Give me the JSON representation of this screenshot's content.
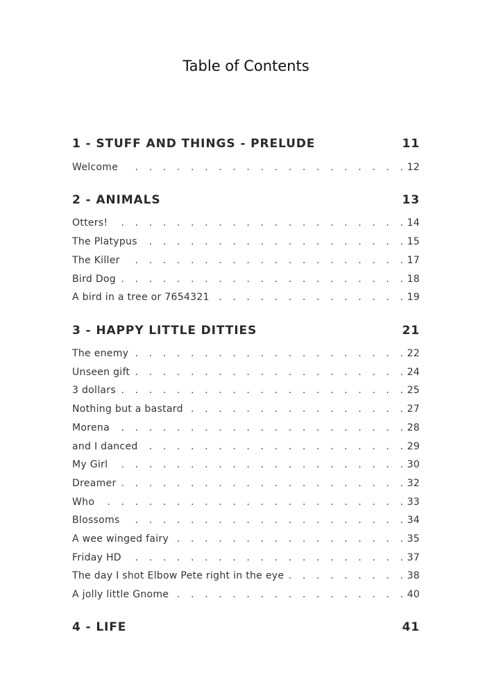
{
  "title": "Table of Contents",
  "chapters": [
    {
      "heading": "1 - STUFF AND THINGS - PRELUDE",
      "page": "11",
      "entries": [
        {
          "title": "Welcome",
          "page": "12"
        }
      ]
    },
    {
      "heading": "2 - ANIMALS",
      "page": "13",
      "entries": [
        {
          "title": "Otters!",
          "page": "14"
        },
        {
          "title": "The Platypus",
          "page": "15"
        },
        {
          "title": "The Killer",
          "page": "17"
        },
        {
          "title": "Bird Dog",
          "page": "18"
        },
        {
          "title": "A bird in a tree or 7654321",
          "page": "19"
        }
      ]
    },
    {
      "heading": "3 - HAPPY LITTLE DITTIES",
      "page": "21",
      "entries": [
        {
          "title": "The enemy",
          "page": "22"
        },
        {
          "title": "Unseen gift",
          "page": "24"
        },
        {
          "title": "3 dollars",
          "page": "25"
        },
        {
          "title": "Nothing but a bastard",
          "page": "27"
        },
        {
          "title": "Morena",
          "page": "28"
        },
        {
          "title": "and I danced",
          "page": "29"
        },
        {
          "title": "My Girl",
          "page": "30"
        },
        {
          "title": "Dreamer",
          "page": "32"
        },
        {
          "title": "Who",
          "page": "33"
        },
        {
          "title": "Blossoms",
          "page": "34"
        },
        {
          "title": "A wee winged fairy",
          "page": "35"
        },
        {
          "title": "Friday HD",
          "page": "37"
        },
        {
          "title": "The day I shot Elbow Pete right in the eye",
          "page": "38"
        },
        {
          "title": "A jolly little Gnome",
          "page": "40"
        }
      ]
    },
    {
      "heading": "4 - LIFE",
      "page": "41",
      "entries": []
    }
  ]
}
